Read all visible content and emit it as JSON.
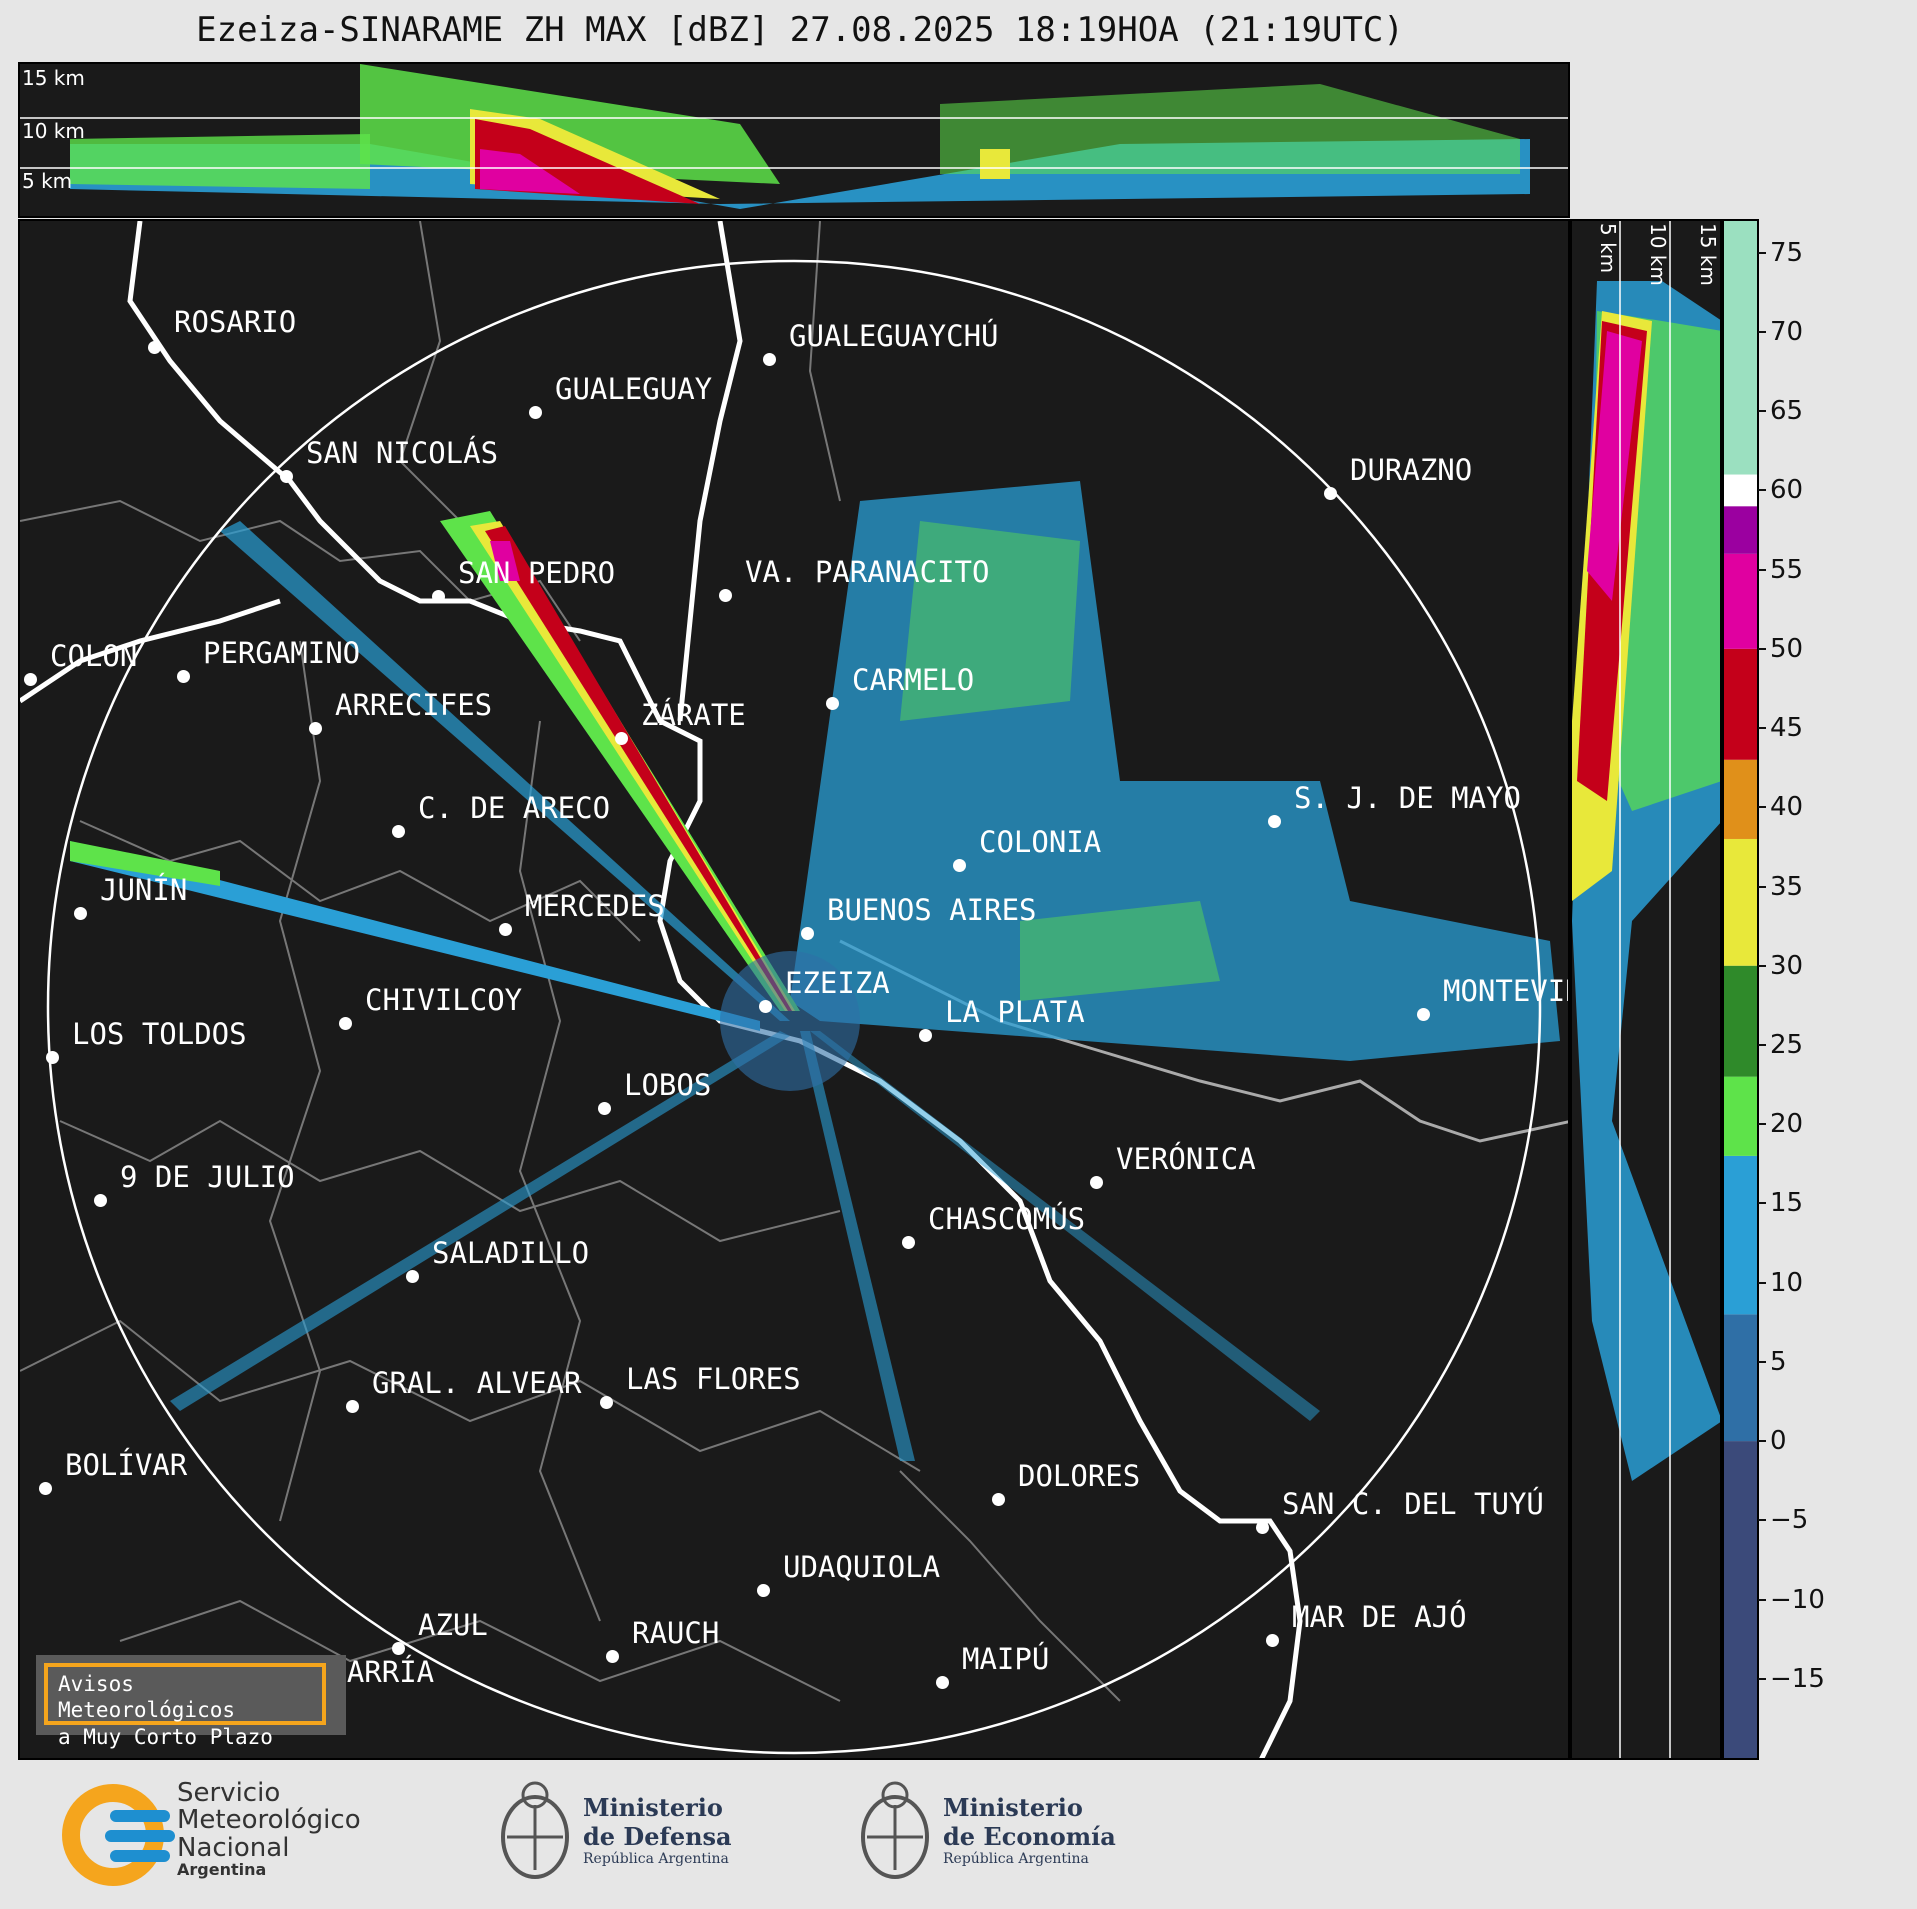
{
  "title": "Ezeiza-SINARAME ZH MAX [dBZ] 27.08.2025 18:19HOA (21:19UTC)",
  "top_panel": {
    "labels": [
      "15 km",
      "10 km",
      "5 km"
    ]
  },
  "side_panel": {
    "labels": [
      "5 km",
      "10 km",
      "15 km"
    ]
  },
  "colorbar": {
    "ticks": [
      "75",
      "70",
      "65",
      "60",
      "55",
      "50",
      "45",
      "40",
      "35",
      "30",
      "25",
      "20",
      "15",
      "10",
      "5",
      "0",
      "−5",
      "−10",
      "−15"
    ],
    "min": -20,
    "max": 77,
    "bands": [
      {
        "from": -20,
        "to": 0,
        "color": "#3b4a7a"
      },
      {
        "from": 0,
        "to": 8,
        "color": "#2f6fa6"
      },
      {
        "from": 8,
        "to": 18,
        "color": "#2a9fd6"
      },
      {
        "from": 18,
        "to": 23,
        "color": "#5ee34a"
      },
      {
        "from": 23,
        "to": 30,
        "color": "#2f8a2a"
      },
      {
        "from": 30,
        "to": 38,
        "color": "#e8e83a"
      },
      {
        "from": 38,
        "to": 43,
        "color": "#e0901a"
      },
      {
        "from": 43,
        "to": 50,
        "color": "#c4001a"
      },
      {
        "from": 50,
        "to": 56,
        "color": "#e000a0"
      },
      {
        "from": 56,
        "to": 59,
        "color": "#9b00a0"
      },
      {
        "from": 59,
        "to": 61,
        "color": "#ffffff"
      },
      {
        "from": 61,
        "to": 77,
        "color": "#9be0c0"
      }
    ]
  },
  "cities": [
    {
      "name": "ROSARIO"
    },
    {
      "name": "GUALEGUAYCHÚ"
    },
    {
      "name": "GUALEGUAY"
    },
    {
      "name": "SAN NICOLÁS"
    },
    {
      "name": "DURAZNO"
    },
    {
      "name": "SAN PEDRO"
    },
    {
      "name": "VA. PARANACITO"
    },
    {
      "name": "COLON"
    },
    {
      "name": "PERGAMINO"
    },
    {
      "name": "CARMELO"
    },
    {
      "name": "ARRECIFES"
    },
    {
      "name": "ZÁRATE"
    },
    {
      "name": "S. J. DE MAYO"
    },
    {
      "name": "C. DE ARECO"
    },
    {
      "name": "COLONIA"
    },
    {
      "name": "JUNÍN"
    },
    {
      "name": "MERCEDES"
    },
    {
      "name": "BUENOS AIRES"
    },
    {
      "name": "EZEIZA"
    },
    {
      "name": "MONTEVIDEO"
    },
    {
      "name": "CHIVILCOY"
    },
    {
      "name": "LA PLATA"
    },
    {
      "name": "LOS TOLDOS"
    },
    {
      "name": "LOBOS"
    },
    {
      "name": "VERÓNICA"
    },
    {
      "name": "9 DE JULIO"
    },
    {
      "name": "CHASCOMÚS"
    },
    {
      "name": "SALADILLO"
    },
    {
      "name": "GRAL. ALVEAR"
    },
    {
      "name": "LAS FLORES"
    },
    {
      "name": "BOLÍVAR"
    },
    {
      "name": "DOLORES"
    },
    {
      "name": "SAN C. DEL TUYÚ"
    },
    {
      "name": "UDAQUIOLA"
    },
    {
      "name": "MAR DE AJÓ"
    },
    {
      "name": "AZUL"
    },
    {
      "name": "RAUCH"
    },
    {
      "name": "OLAVARRÍA"
    },
    {
      "name": "MAIPÚ"
    }
  ],
  "warning_button": {
    "line1": "Avisos Meteorológicos",
    "line2": "a Muy Corto Plazo"
  },
  "logos": {
    "smn": {
      "line1": "Servicio",
      "line2": "Meteorológico",
      "line3": "Nacional",
      "line4": "Argentina"
    },
    "defensa": {
      "line1": "Ministerio",
      "line2": "de Defensa",
      "line3": "República Argentina"
    },
    "economia": {
      "line1": "Ministerio",
      "line2": "de Economía",
      "line3": "República Argentina"
    }
  },
  "colors": {
    "background": "#1a1a1a",
    "page": "#e6e6e6",
    "warning_border": "#f5a51d",
    "smn_blue": "#1e8fd0",
    "smn_orange": "#f5a51d"
  }
}
